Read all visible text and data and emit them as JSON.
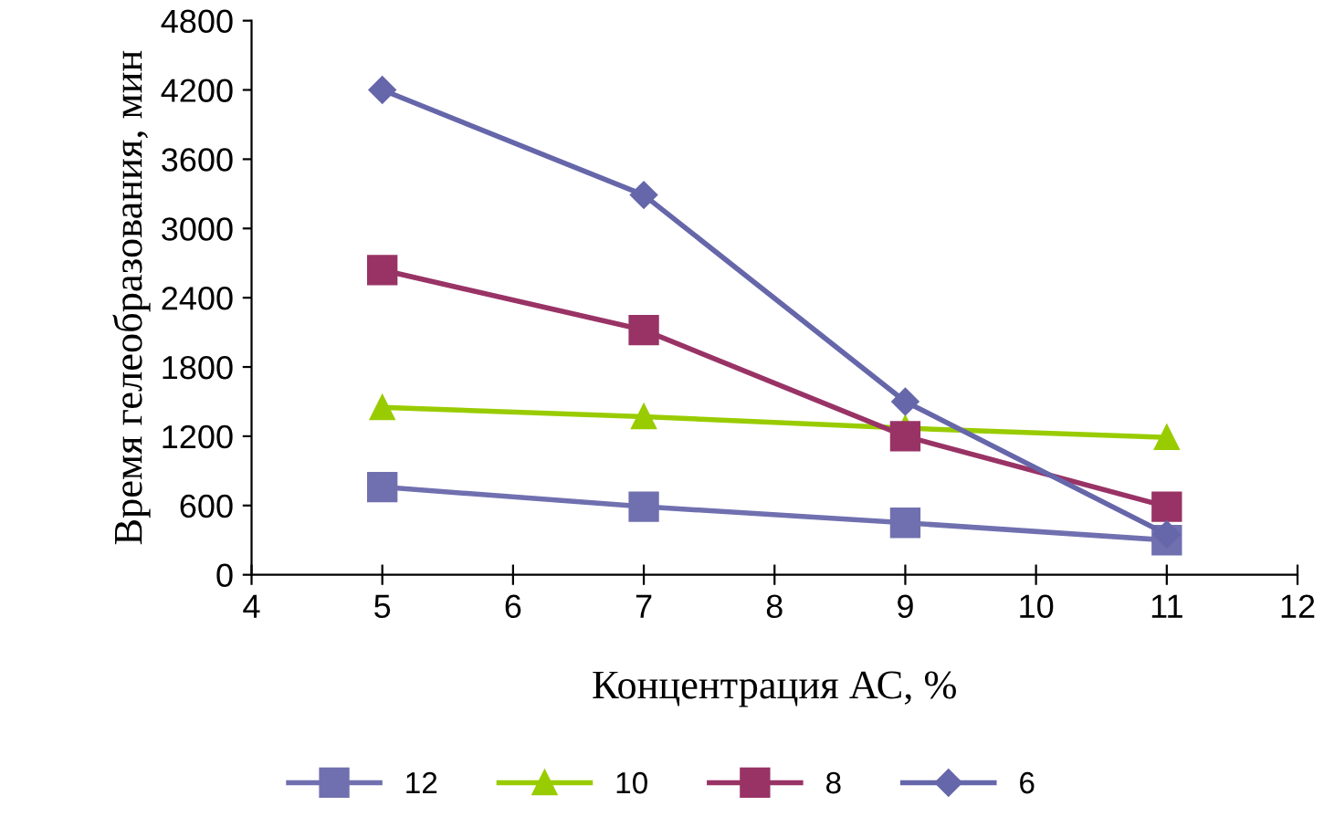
{
  "chart_data": {
    "type": "line",
    "xlabel": "Концентрация АС, %",
    "ylabel": "Время гелеобразования, мин",
    "x": [
      5,
      7,
      9,
      11
    ],
    "series": [
      {
        "name": "12",
        "color": "#7070b0",
        "marker": "square",
        "values": [
          760,
          590,
          450,
          300
        ]
      },
      {
        "name": "10",
        "color": "#99cc00",
        "marker": "triangle",
        "values": [
          1450,
          1370,
          1270,
          1190
        ]
      },
      {
        "name": "8",
        "color": "#993366",
        "marker": "square",
        "values": [
          2640,
          2120,
          1200,
          590
        ]
      },
      {
        "name": "6",
        "color": "#6666aa",
        "marker": "diamond",
        "values": [
          4200,
          3290,
          1500,
          350
        ]
      }
    ],
    "xlim": [
      4,
      12
    ],
    "xticks": [
      4,
      5,
      6,
      7,
      8,
      9,
      10,
      11,
      12
    ],
    "ylim": [
      0,
      4800
    ],
    "yticks": [
      0,
      600,
      1200,
      1800,
      2400,
      3000,
      3600,
      4200,
      4800
    ],
    "grid": false,
    "legend": "bottom"
  }
}
